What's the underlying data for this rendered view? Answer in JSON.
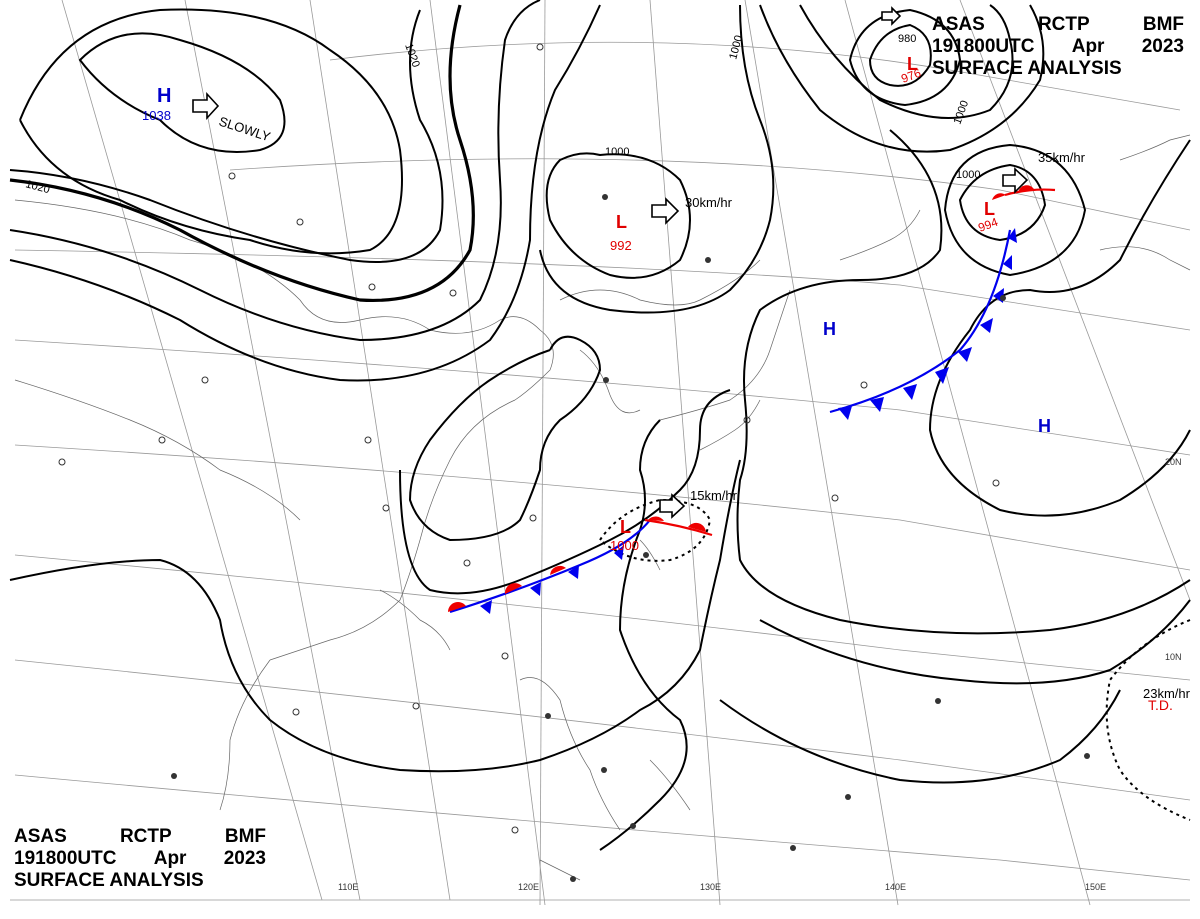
{
  "header": {
    "agency": "ASAS",
    "station": "RCTP",
    "office": "BMF",
    "time": "191800UTC",
    "month": "Apr",
    "year": "2023",
    "product": "SURFACE ANALYSIS"
  },
  "systems": {
    "high_nw": {
      "symbol": "H",
      "pressure": "1038",
      "motion": "SLOWLY"
    },
    "low_north": {
      "symbol": "L",
      "pressure": "992",
      "motion": "30km/hr"
    },
    "low_ne": {
      "symbol": "L",
      "pressure": "976"
    },
    "low_east": {
      "symbol": "L",
      "pressure": "994",
      "motion": "35km/hr"
    },
    "low_frontal": {
      "symbol": "L",
      "pressure": "1000",
      "motion": "15km/hr"
    },
    "high_center": {
      "symbol": "H"
    },
    "high_east": {
      "symbol": "H"
    },
    "tropical_depression": {
      "symbol": "T.D.",
      "motion": "23km/hr"
    }
  },
  "isobar_labels": {
    "l1020_a": "1020",
    "l1020_b": "1020",
    "l1000_a": "1000",
    "l1000_b": "1000",
    "l1000_c": "1000",
    "l980": "980",
    "l1000_d": "1000"
  },
  "graticule": {
    "lon": [
      "110E",
      "120E",
      "130E",
      "140E",
      "150E"
    ],
    "lat": [
      "20N",
      "10N"
    ]
  },
  "colors": {
    "isobar": "#000000",
    "low_symbol": "#e00000",
    "high_symbol": "#0000cc",
    "cold_front": "#0000ee",
    "warm_front": "#ee0000",
    "coastline": "#666666",
    "grid": "#999999"
  }
}
